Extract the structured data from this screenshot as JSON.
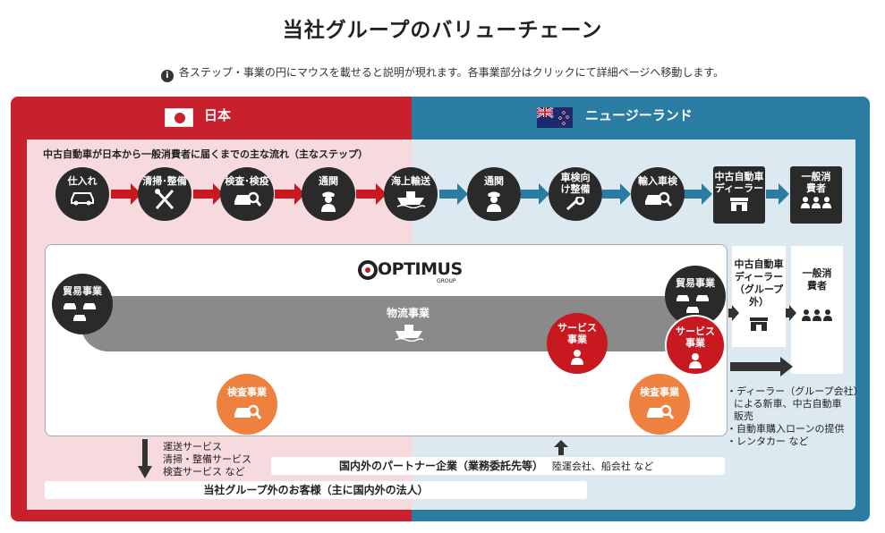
{
  "page": {
    "title": "当社グループのバリューチェーン",
    "info_text": "各ステップ・事業の円にマウスを載せると説明が現れます。各事業部分はクリックにて詳細ページへ移動します。",
    "info_icon": "info-icon"
  },
  "regions": {
    "japan": "日本",
    "new_zealand": "ニュージーランド"
  },
  "flow": {
    "title": "中古自動車が日本から一般消費者に届くまでの主な流れ（主なステップ）",
    "steps": [
      {
        "label": "仕入れ",
        "icon": "car-icon"
      },
      {
        "label": "清掃･整備",
        "icon": "tools-icon"
      },
      {
        "label": "検査･検疫",
        "icon": "car-search-icon"
      },
      {
        "label": "通関",
        "icon": "officer-icon"
      },
      {
        "label": "海上輸送",
        "icon": "ship-icon"
      },
      {
        "label": "通関",
        "icon": "officer-icon"
      },
      {
        "label": "車検向け整備",
        "icon": "wrench-icon"
      },
      {
        "label": "輸入車検",
        "icon": "car-search-icon"
      },
      {
        "label": "中古自動車ディーラー",
        "icon": "shop-icon"
      },
      {
        "label": "一般消費者",
        "icon": "people-icon"
      }
    ]
  },
  "business": {
    "logo": "OPTIMUS",
    "logo_sub": "GROUP",
    "trade_label": "貿易事業",
    "logistics_label": "物流事業",
    "service_label": "サービス事業",
    "inspection_label": "検査事業",
    "dealer_label": "中古自動車ディーラー（グループ外）",
    "consumer_label": "一般消費者"
  },
  "nz_services": [
    "・ディーラー（グループ会社）",
    "による新車、中古自動車",
    "販売",
    "・自動車購入ローンの提供",
    "・レンタカー など"
  ],
  "jp_services": [
    "運送サービス",
    "清掃・整備サービス",
    "検査サービス など"
  ],
  "partners": {
    "label": "国内外のパートナー企業（業務委託先等）",
    "examples": "陸運会社、船会社 など"
  },
  "customers": "当社グループ外のお客様（主に国内外の法人）",
  "colors": {
    "japan_red": "#c8202d",
    "nz_blue": "#2a7ca3",
    "dark": "#2a2a2a",
    "service_red": "#c81820",
    "inspection_orange": "#ee8040"
  }
}
